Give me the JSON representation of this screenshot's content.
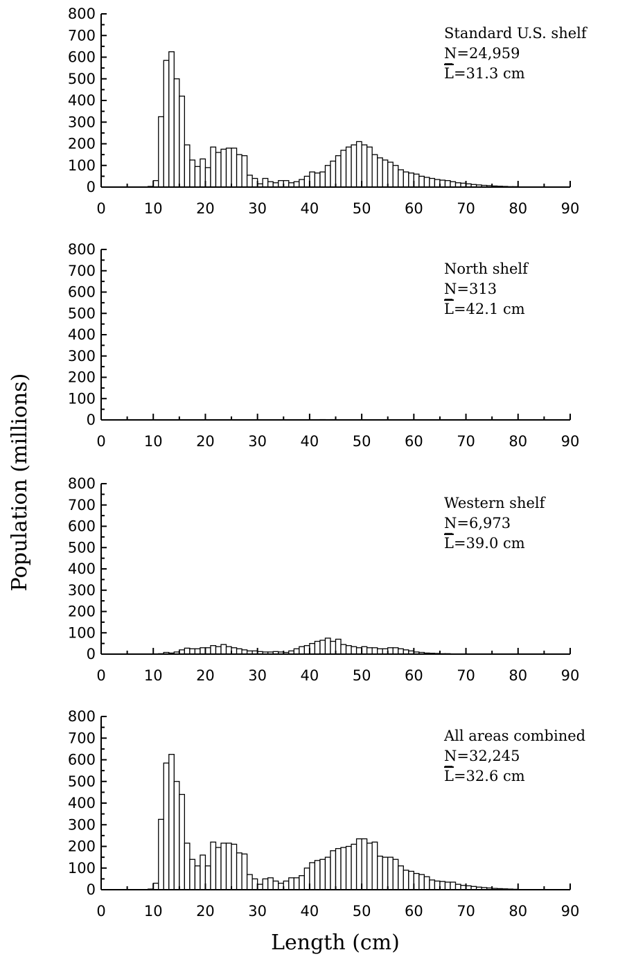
{
  "figure": {
    "ylabel": "Population (millions)",
    "xlabel": "Length (cm)"
  },
  "chart_data": [
    {
      "type": "bar",
      "bin_width": 1,
      "xlim": [
        0,
        90
      ],
      "ylim": [
        0,
        800
      ],
      "x_ticks": [
        "0",
        "10",
        "20",
        "30",
        "40",
        "50",
        "60",
        "70",
        "80",
        "90"
      ],
      "y_ticks": [
        "0",
        "100",
        "200",
        "300",
        "400",
        "500",
        "600",
        "700",
        "800"
      ],
      "annotation": {
        "title": "Standard U.S. shelf",
        "n": "N=24,959",
        "mean_symbol": "L",
        "mean": "=31.3 cm"
      },
      "x": [
        9,
        10,
        11,
        12,
        13,
        14,
        15,
        16,
        17,
        18,
        19,
        20,
        21,
        22,
        23,
        24,
        25,
        26,
        27,
        28,
        29,
        30,
        31,
        32,
        33,
        34,
        35,
        36,
        37,
        38,
        39,
        40,
        41,
        42,
        43,
        44,
        45,
        46,
        47,
        48,
        49,
        50,
        51,
        52,
        53,
        54,
        55,
        56,
        57,
        58,
        59,
        60,
        61,
        62,
        63,
        64,
        65,
        66,
        67,
        68,
        69,
        70,
        71,
        72,
        73,
        74,
        75,
        76,
        77,
        78,
        79,
        80
      ],
      "values": [
        3,
        30,
        325,
        585,
        625,
        500,
        420,
        195,
        125,
        95,
        130,
        90,
        185,
        160,
        175,
        180,
        180,
        150,
        145,
        55,
        40,
        15,
        40,
        25,
        20,
        30,
        30,
        20,
        25,
        35,
        50,
        70,
        65,
        70,
        100,
        120,
        145,
        170,
        185,
        195,
        210,
        195,
        185,
        150,
        135,
        125,
        115,
        100,
        80,
        70,
        65,
        60,
        50,
        45,
        40,
        35,
        32,
        30,
        25,
        20,
        18,
        15,
        12,
        10,
        8,
        7,
        5,
        4,
        3,
        2,
        2,
        1
      ]
    },
    {
      "type": "bar",
      "bin_width": 1,
      "xlim": [
        0,
        90
      ],
      "ylim": [
        0,
        800
      ],
      "x_ticks": [
        "0",
        "10",
        "20",
        "30",
        "40",
        "50",
        "60",
        "70",
        "80",
        "90"
      ],
      "y_ticks": [
        "0",
        "100",
        "200",
        "300",
        "400",
        "500",
        "600",
        "700",
        "800"
      ],
      "annotation": {
        "title": "North shelf",
        "n": "N=313",
        "mean_symbol": "L",
        "mean": "=42.1 cm"
      },
      "x": [
        30,
        32,
        34,
        36,
        38,
        40,
        42,
        44,
        46,
        48,
        50,
        52,
        54,
        56
      ],
      "values": [
        0.5,
        0.5,
        1,
        1,
        1,
        1,
        1.5,
        1.5,
        1,
        1,
        1,
        0.5,
        0.5,
        0.5
      ]
    },
    {
      "type": "bar",
      "bin_width": 1,
      "xlim": [
        0,
        90
      ],
      "ylim": [
        0,
        800
      ],
      "x_ticks": [
        "0",
        "10",
        "20",
        "30",
        "40",
        "50",
        "60",
        "70",
        "80",
        "90"
      ],
      "y_ticks": [
        "0",
        "100",
        "200",
        "300",
        "400",
        "500",
        "600",
        "700",
        "800"
      ],
      "annotation": {
        "title": "Western shelf",
        "n": "N=6,973",
        "mean_symbol": "L",
        "mean": "=39.0 cm"
      },
      "x": [
        11,
        12,
        13,
        14,
        15,
        16,
        17,
        18,
        19,
        20,
        21,
        22,
        23,
        24,
        25,
        26,
        27,
        28,
        29,
        30,
        31,
        32,
        33,
        34,
        35,
        36,
        37,
        38,
        39,
        40,
        41,
        42,
        43,
        44,
        45,
        46,
        47,
        48,
        49,
        50,
        51,
        52,
        53,
        54,
        55,
        56,
        57,
        58,
        59,
        60,
        61,
        62,
        63,
        64,
        65,
        66,
        67
      ],
      "values": [
        2,
        8,
        5,
        10,
        20,
        28,
        25,
        25,
        30,
        30,
        40,
        35,
        45,
        35,
        30,
        25,
        20,
        15,
        15,
        12,
        10,
        10,
        12,
        10,
        8,
        15,
        25,
        35,
        40,
        50,
        60,
        65,
        75,
        60,
        70,
        45,
        40,
        35,
        30,
        35,
        30,
        30,
        25,
        25,
        30,
        30,
        25,
        20,
        15,
        10,
        8,
        5,
        4,
        3,
        2,
        2,
        1
      ]
    },
    {
      "type": "bar",
      "bin_width": 1,
      "xlim": [
        0,
        90
      ],
      "ylim": [
        0,
        800
      ],
      "x_ticks": [
        "0",
        "10",
        "20",
        "30",
        "40",
        "50",
        "60",
        "70",
        "80",
        "90"
      ],
      "y_ticks": [
        "0",
        "100",
        "200",
        "300",
        "400",
        "500",
        "600",
        "700",
        "800"
      ],
      "annotation": {
        "title": "All areas combined",
        "n": "N=32,245",
        "mean_symbol": "L",
        "mean": "=32.6 cm"
      },
      "x": [
        9,
        10,
        11,
        12,
        13,
        14,
        15,
        16,
        17,
        18,
        19,
        20,
        21,
        22,
        23,
        24,
        25,
        26,
        27,
        28,
        29,
        30,
        31,
        32,
        33,
        34,
        35,
        36,
        37,
        38,
        39,
        40,
        41,
        42,
        43,
        44,
        45,
        46,
        47,
        48,
        49,
        50,
        51,
        52,
        53,
        54,
        55,
        56,
        57,
        58,
        59,
        60,
        61,
        62,
        63,
        64,
        65,
        66,
        67,
        68,
        69,
        70,
        71,
        72,
        73,
        74,
        75,
        76,
        77,
        78,
        79,
        80
      ],
      "values": [
        3,
        30,
        325,
        585,
        625,
        500,
        440,
        215,
        140,
        110,
        160,
        110,
        220,
        195,
        215,
        215,
        210,
        170,
        165,
        70,
        50,
        25,
        50,
        55,
        40,
        30,
        40,
        55,
        55,
        65,
        100,
        125,
        135,
        140,
        150,
        180,
        190,
        195,
        200,
        210,
        235,
        235,
        215,
        220,
        155,
        150,
        150,
        140,
        110,
        90,
        85,
        75,
        70,
        60,
        45,
        40,
        38,
        35,
        35,
        25,
        20,
        18,
        15,
        12,
        10,
        8,
        6,
        5,
        4,
        3,
        2,
        1
      ]
    }
  ]
}
